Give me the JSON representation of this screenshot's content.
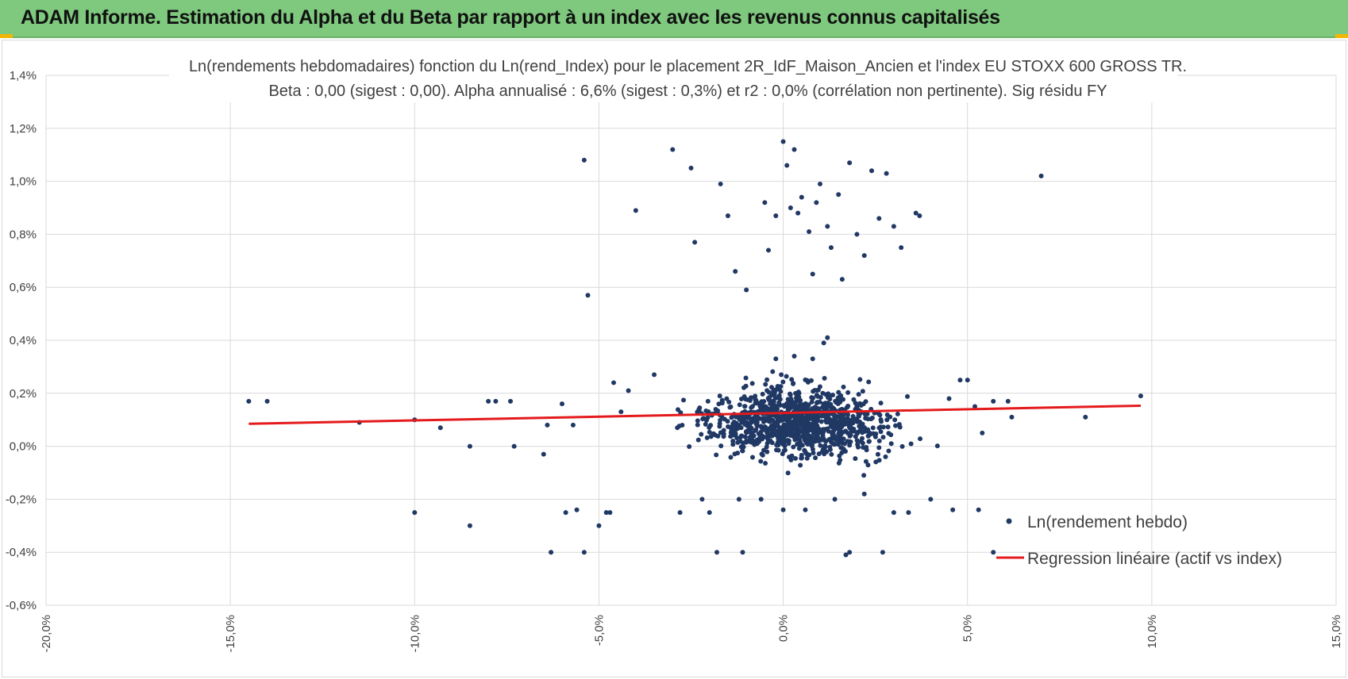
{
  "banner": {
    "title": "ADAM Informe. Estimation du Alpha et du Beta par rapport à un index avec les revenus connus capitalisés",
    "background": "#7fc97f",
    "corner_color": "#f2b705"
  },
  "chart_data": {
    "type": "scatter",
    "title_line1": "Ln(rendements hebdomadaires) fonction du Ln(rend_Index) pour le placement 2R_IdF_Maison_Ancien et l'index EU STOXX 600 GROSS TR.",
    "title_line2": "Beta : 0,00 (sigest : 0,00). Alpha annualisé : 6,6% (sigest : 0,3%) et r2 : 0,0% (corrélation non pertinente). Sig résidu FY",
    "xlabel": "",
    "ylabel": "",
    "xlim": [
      -0.2,
      0.15
    ],
    "ylim": [
      -0.006,
      0.014
    ],
    "x_ticks": [
      -0.2,
      -0.15,
      -0.1,
      -0.05,
      0.0,
      0.05,
      0.1,
      0.15
    ],
    "x_tick_labels": [
      "-20,0%",
      "-15,0%",
      "-10,0%",
      "-5,0%",
      "0,0%",
      "5,0%",
      "10,0%",
      "15,0%"
    ],
    "y_ticks": [
      -0.006,
      -0.004,
      -0.002,
      0.0,
      0.002,
      0.004,
      0.006,
      0.008,
      0.01,
      0.012,
      0.014
    ],
    "y_tick_labels": [
      "-0,6%",
      "-0,4%",
      "-0,2%",
      "0,0%",
      "0,2%",
      "0,4%",
      "0,6%",
      "0,8%",
      "1,0%",
      "1,2%",
      "1,4%"
    ],
    "grid": true,
    "legend_position": "bottom-right",
    "series": [
      {
        "name": "Ln(rendement hebdo)",
        "kind": "scatter",
        "color": "#203864",
        "points": [
          [
            -0.145,
            0.0017
          ],
          [
            -0.14,
            0.0017
          ],
          [
            -0.115,
            0.0009
          ],
          [
            -0.1,
            0.001
          ],
          [
            -0.1,
            -0.0025
          ],
          [
            -0.093,
            0.0007
          ],
          [
            -0.085,
            0.0
          ],
          [
            -0.085,
            -0.003
          ],
          [
            -0.08,
            0.0017
          ],
          [
            -0.078,
            0.0017
          ],
          [
            -0.074,
            0.0017
          ],
          [
            -0.073,
            0.0
          ],
          [
            -0.065,
            -0.0003
          ],
          [
            -0.064,
            0.0008
          ],
          [
            -0.063,
            -0.004
          ],
          [
            -0.06,
            0.0016
          ],
          [
            -0.059,
            -0.0025
          ],
          [
            -0.057,
            0.0008
          ],
          [
            -0.056,
            -0.0024
          ],
          [
            -0.054,
            0.0108
          ],
          [
            -0.053,
            0.0057
          ],
          [
            -0.054,
            -0.004
          ],
          [
            -0.05,
            -0.003
          ],
          [
            -0.048,
            -0.0025
          ],
          [
            -0.047,
            -0.0025
          ],
          [
            -0.04,
            0.0089
          ],
          [
            -0.03,
            0.0112
          ],
          [
            -0.028,
            -0.0025
          ],
          [
            -0.025,
            0.0105
          ],
          [
            -0.024,
            0.0077
          ],
          [
            -0.02,
            -0.0025
          ],
          [
            -0.018,
            -0.004
          ],
          [
            -0.017,
            0.0099
          ],
          [
            -0.015,
            0.0087
          ],
          [
            -0.013,
            0.0066
          ],
          [
            -0.01,
            0.0059
          ],
          [
            -0.011,
            -0.004
          ],
          [
            -0.005,
            0.0092
          ],
          [
            -0.002,
            0.0087
          ],
          [
            0.0,
            0.0115
          ],
          [
            0.001,
            0.0106
          ],
          [
            0.003,
            0.0112
          ],
          [
            0.005,
            0.0094
          ],
          [
            0.007,
            0.0081
          ],
          [
            0.008,
            0.0065
          ],
          [
            0.01,
            0.0099
          ],
          [
            0.012,
            0.0083
          ],
          [
            0.013,
            0.0075
          ],
          [
            0.015,
            0.0095
          ],
          [
            0.016,
            0.0063
          ],
          [
            0.018,
            0.0107
          ],
          [
            0.02,
            0.008
          ],
          [
            0.022,
            0.0072
          ],
          [
            0.024,
            0.0104
          ],
          [
            0.026,
            0.0086
          ],
          [
            0.028,
            0.0103
          ],
          [
            0.03,
            0.0083
          ],
          [
            0.032,
            0.0075
          ],
          [
            0.036,
            0.0088
          ],
          [
            0.037,
            0.0087
          ],
          [
            0.07,
            0.0102
          ],
          [
            0.002,
            0.009
          ],
          [
            -0.004,
            0.0074
          ],
          [
            0.004,
            0.0088
          ],
          [
            0.009,
            0.0092
          ],
          [
            0.012,
            0.0041
          ],
          [
            0.011,
            0.0039
          ],
          [
            0.017,
            -0.0041
          ],
          [
            0.018,
            -0.004
          ],
          [
            0.027,
            -0.004
          ],
          [
            0.03,
            -0.0025
          ],
          [
            0.034,
            -0.0025
          ],
          [
            0.04,
            -0.002
          ],
          [
            0.046,
            -0.0024
          ],
          [
            0.053,
            -0.0024
          ],
          [
            0.057,
            -0.004
          ],
          [
            0.057,
            0.0017
          ],
          [
            0.061,
            0.0017
          ],
          [
            0.062,
            0.0011
          ],
          [
            0.082,
            0.0011
          ],
          [
            0.097,
            0.0019
          ],
          [
            0.048,
            0.0025
          ],
          [
            0.05,
            0.0025
          ],
          [
            0.052,
            0.0015
          ],
          [
            0.054,
            0.0005
          ],
          [
            0.045,
            0.0018
          ],
          [
            -0.044,
            0.0013
          ],
          [
            -0.046,
            0.0024
          ],
          [
            -0.042,
            0.0021
          ],
          [
            -0.035,
            0.0027
          ],
          [
            0.008,
            0.0033
          ],
          [
            0.003,
            0.0034
          ],
          [
            -0.002,
            0.0033
          ],
          [
            0.0,
            -0.0024
          ],
          [
            0.006,
            -0.0024
          ],
          [
            -0.006,
            -0.002
          ],
          [
            -0.012,
            -0.002
          ],
          [
            -0.022,
            -0.002
          ],
          [
            0.022,
            -0.0018
          ],
          [
            0.014,
            -0.002
          ]
        ]
      },
      {
        "name": "Regression linéaire (actif vs index)",
        "kind": "line",
        "color": "#e41a1c",
        "points": [
          [
            -0.145,
            0.00085
          ],
          [
            0.097,
            0.00153
          ]
        ]
      }
    ],
    "cluster_points": {
      "description_free": true,
      "seed": 12345,
      "count": 1050,
      "center": [
        0.004,
        0.0009
      ],
      "spread": [
        0.016,
        0.0009
      ]
    }
  }
}
